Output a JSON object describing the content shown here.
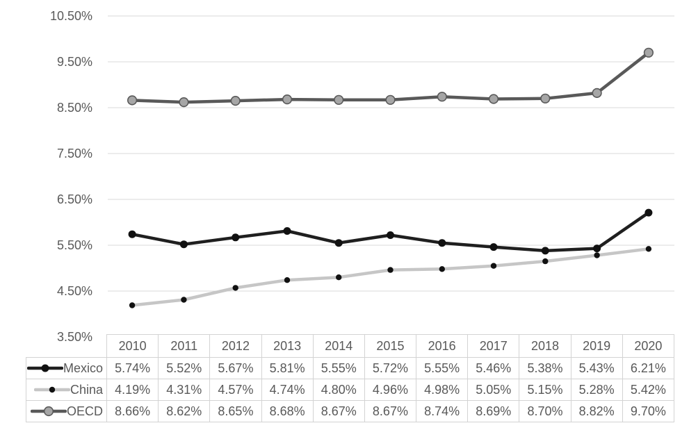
{
  "colors": {
    "background": "#ffffff",
    "grid": "#d9d9d9",
    "axis_text": "#595959",
    "table_text": "#595959",
    "table_border": "#d3d3d3"
  },
  "chart_data": {
    "type": "line",
    "title": "",
    "xlabel": "",
    "ylabel": "",
    "grid": true,
    "legend_position": "data-table-left",
    "categories": [
      "2010",
      "2011",
      "2012",
      "2013",
      "2014",
      "2015",
      "2016",
      "2017",
      "2018",
      "2019",
      "2020"
    ],
    "series": [
      {
        "name": "Mexico",
        "values": [
          5.74,
          5.52,
          5.67,
          5.81,
          5.55,
          5.72,
          5.55,
          5.46,
          5.38,
          5.43,
          6.21
        ],
        "display": [
          "5.74%",
          "5.52%",
          "5.67%",
          "5.81%",
          "5.55%",
          "5.72%",
          "5.55%",
          "5.46%",
          "5.38%",
          "5.43%",
          "6.21%"
        ],
        "line_color": "#1f1f1f",
        "line_width": 4.5,
        "marker_fill": "#111111",
        "marker_stroke": "#111111",
        "marker_stroke_width": 0,
        "marker_radius": 5.5
      },
      {
        "name": "China",
        "values": [
          4.19,
          4.31,
          4.57,
          4.74,
          4.8,
          4.96,
          4.98,
          5.05,
          5.15,
          5.28,
          5.42
        ],
        "display": [
          "4.19%",
          "4.31%",
          "4.57%",
          "4.74%",
          "4.80%",
          "4.96%",
          "4.98%",
          "5.05%",
          "5.15%",
          "5.28%",
          "5.42%"
        ],
        "line_color": "#c6c6c6",
        "line_width": 4.5,
        "marker_fill": "#111111",
        "marker_stroke": "#111111",
        "marker_stroke_width": 0,
        "marker_radius": 4.2
      },
      {
        "name": "OECD",
        "values": [
          8.66,
          8.62,
          8.65,
          8.68,
          8.67,
          8.67,
          8.74,
          8.69,
          8.7,
          8.82,
          9.7
        ],
        "display": [
          "8.66%",
          "8.62%",
          "8.65%",
          "8.68%",
          "8.67%",
          "8.67%",
          "8.74%",
          "8.69%",
          "8.70%",
          "8.82%",
          "9.70%"
        ],
        "line_color": "#595959",
        "line_width": 4.5,
        "marker_fill": "#a6a6a6",
        "marker_stroke": "#595959",
        "marker_stroke_width": 1.6,
        "marker_radius": 6.3
      }
    ],
    "ylim": [
      3.5,
      10.5
    ],
    "ytick_step": 1.0,
    "ytick_labels_top_down": [
      "10.50%",
      "9.50%",
      "8.50%",
      "7.50%",
      "6.50%",
      "5.50%",
      "4.50%",
      "3.50%"
    ]
  }
}
